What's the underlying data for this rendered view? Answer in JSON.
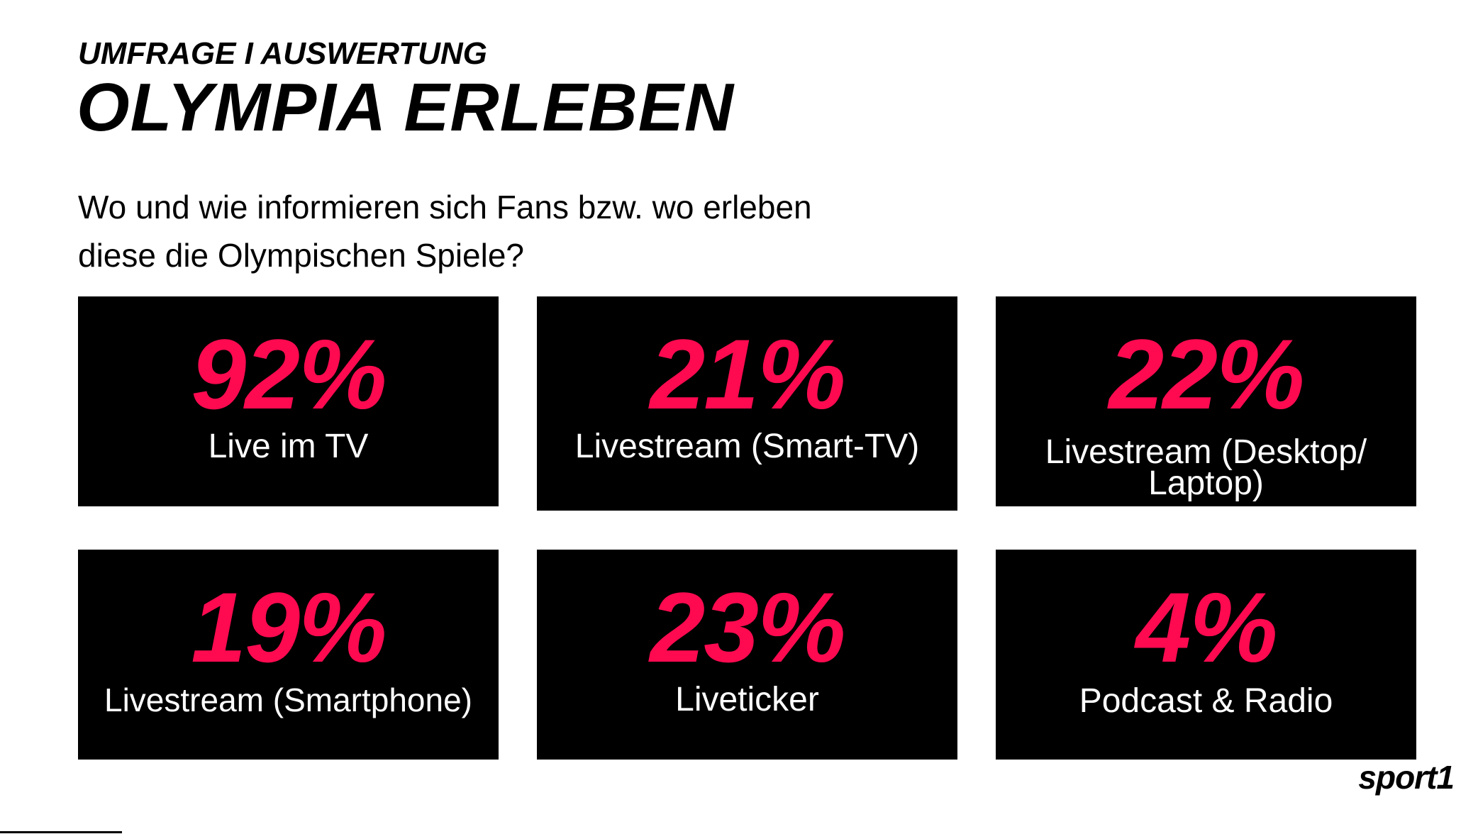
{
  "header": {
    "kicker": "UMFRAGE I AUSWERTUNG",
    "title": "OLYMPIA ERLEBEN"
  },
  "question": {
    "line1": "Wo und wie informieren sich Fans bzw. wo erleben",
    "line2": "diese die Olympischen Spiele?"
  },
  "brand": {
    "logo_text": "sport1"
  },
  "colors": {
    "accent": "#ff0a50",
    "tile_background": "#000000",
    "tile_label": "#ffffff",
    "page_background": "#ffffff"
  },
  "chart_data": {
    "type": "table",
    "title": "OLYMPIA ERLEBEN",
    "subtitle": "Wo und wie informieren sich Fans bzw. wo erleben diese die Olympischen Spiele?",
    "unit": "%",
    "categories": [
      "Live im TV",
      "Livestream (Smart-TV)",
      "Livestream (Desktop/ Laptop)",
      "Livestream (Smartphone)",
      "Liveticker",
      "Podcast & Radio"
    ],
    "values": [
      92,
      21,
      22,
      19,
      23,
      4
    ],
    "labels": [
      "92%",
      "21%",
      "22%",
      "19%",
      "23%",
      "4%"
    ]
  }
}
